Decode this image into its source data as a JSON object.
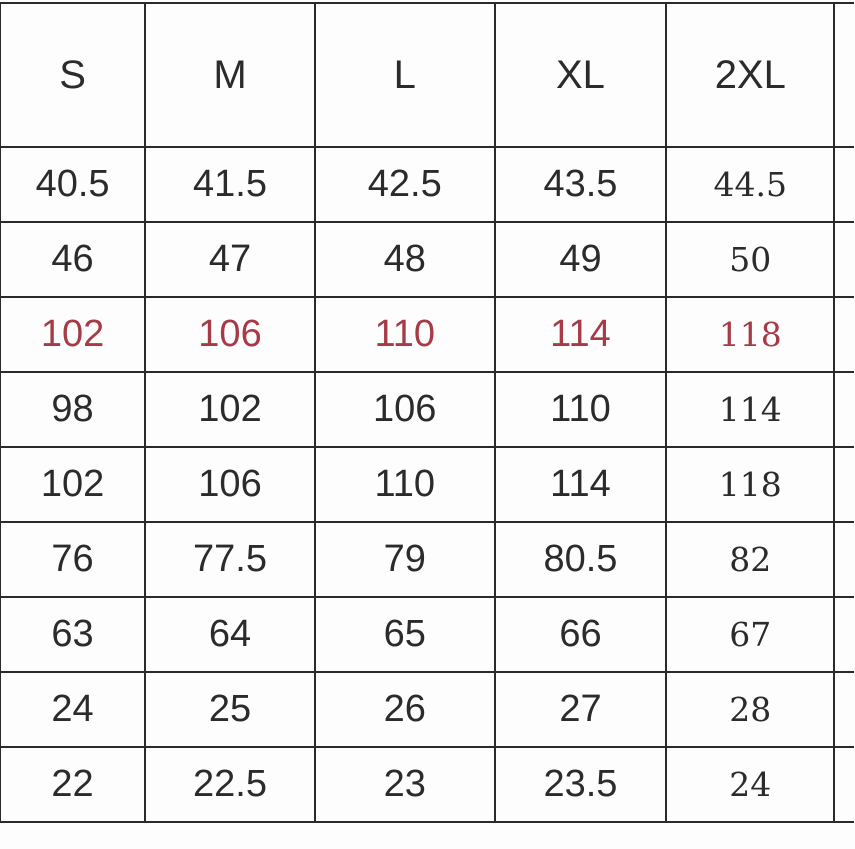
{
  "headers": [
    "S",
    "M",
    "L",
    "XL",
    "2XL"
  ],
  "rows": [
    [
      "40.5",
      "41.5",
      "42.5",
      "43.5",
      "44.5"
    ],
    [
      "46",
      "47",
      "48",
      "49",
      "50"
    ],
    [
      "102",
      "106",
      "110",
      "114",
      "118"
    ],
    [
      "98",
      "102",
      "106",
      "110",
      "114"
    ],
    [
      "102",
      "106",
      "110",
      "114",
      "118"
    ],
    [
      "76",
      "77.5",
      "79",
      "80.5",
      "82"
    ],
    [
      "63",
      "64",
      "65",
      "66",
      "67"
    ],
    [
      "24",
      "25",
      "26",
      "27",
      "28"
    ],
    [
      "22",
      "22.5",
      "23",
      "23.5",
      "24"
    ]
  ],
  "highlight_row_index": 2,
  "colors": {
    "text": "#2b2b2b",
    "highlight": "#a63a46",
    "border": "#2a2a2a"
  }
}
